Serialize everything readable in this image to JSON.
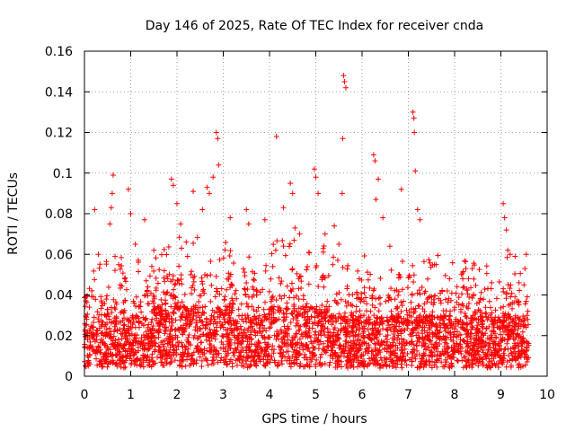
{
  "chart_data": {
    "type": "scatter",
    "title": "Day 146 of 2025, Rate Of TEC Index for receiver cnda",
    "xlabel": "GPS time / hours",
    "ylabel": "ROTI / TECUs",
    "xlim": [
      0,
      10
    ],
    "ylim": [
      0,
      0.16
    ],
    "xticks": [
      "0",
      "1",
      "2",
      "3",
      "4",
      "5",
      "6",
      "7",
      "8",
      "9",
      "10"
    ],
    "yticks": [
      "0",
      "0.02",
      "0.04",
      "0.06",
      "0.08",
      "0.1",
      "0.12",
      "0.14",
      "0.16"
    ],
    "grid": true,
    "marker": "+",
    "color": "#ff0000",
    "data_extent_hours": 9.6,
    "notable_points": [
      {
        "x": 0.05,
        "y": 0.028
      },
      {
        "x": 0.22,
        "y": 0.082
      },
      {
        "x": 0.3,
        "y": 0.06
      },
      {
        "x": 0.62,
        "y": 0.099
      },
      {
        "x": 0.6,
        "y": 0.09
      },
      {
        "x": 0.58,
        "y": 0.083
      },
      {
        "x": 0.55,
        "y": 0.075
      },
      {
        "x": 0.95,
        "y": 0.092
      },
      {
        "x": 1.0,
        "y": 0.08
      },
      {
        "x": 1.1,
        "y": 0.065
      },
      {
        "x": 1.3,
        "y": 0.077
      },
      {
        "x": 1.5,
        "y": 0.062
      },
      {
        "x": 1.88,
        "y": 0.097
      },
      {
        "x": 1.92,
        "y": 0.094
      },
      {
        "x": 2.0,
        "y": 0.085
      },
      {
        "x": 2.08,
        "y": 0.075
      },
      {
        "x": 2.2,
        "y": 0.066
      },
      {
        "x": 2.35,
        "y": 0.091
      },
      {
        "x": 2.55,
        "y": 0.082
      },
      {
        "x": 2.65,
        "y": 0.093
      },
      {
        "x": 2.7,
        "y": 0.09
      },
      {
        "x": 2.78,
        "y": 0.098
      },
      {
        "x": 2.85,
        "y": 0.12
      },
      {
        "x": 2.88,
        "y": 0.117
      },
      {
        "x": 2.9,
        "y": 0.104
      },
      {
        "x": 3.15,
        "y": 0.078
      },
      {
        "x": 3.5,
        "y": 0.082
      },
      {
        "x": 3.55,
        "y": 0.075
      },
      {
        "x": 3.9,
        "y": 0.077
      },
      {
        "x": 4.15,
        "y": 0.118
      },
      {
        "x": 4.3,
        "y": 0.083
      },
      {
        "x": 4.45,
        "y": 0.095
      },
      {
        "x": 4.5,
        "y": 0.09
      },
      {
        "x": 4.55,
        "y": 0.073
      },
      {
        "x": 4.65,
        "y": 0.07
      },
      {
        "x": 4.97,
        "y": 0.102
      },
      {
        "x": 5.0,
        "y": 0.098
      },
      {
        "x": 5.05,
        "y": 0.09
      },
      {
        "x": 5.2,
        "y": 0.07
      },
      {
        "x": 5.4,
        "y": 0.074
      },
      {
        "x": 5.5,
        "y": 0.065
      },
      {
        "x": 5.6,
        "y": 0.148
      },
      {
        "x": 5.62,
        "y": 0.145
      },
      {
        "x": 5.65,
        "y": 0.142
      },
      {
        "x": 5.58,
        "y": 0.117
      },
      {
        "x": 5.57,
        "y": 0.09
      },
      {
        "x": 6.25,
        "y": 0.109
      },
      {
        "x": 6.28,
        "y": 0.106
      },
      {
        "x": 6.35,
        "y": 0.097
      },
      {
        "x": 6.3,
        "y": 0.087
      },
      {
        "x": 6.45,
        "y": 0.078
      },
      {
        "x": 6.6,
        "y": 0.064
      },
      {
        "x": 6.85,
        "y": 0.092
      },
      {
        "x": 7.1,
        "y": 0.13
      },
      {
        "x": 7.12,
        "y": 0.127
      },
      {
        "x": 7.13,
        "y": 0.12
      },
      {
        "x": 7.15,
        "y": 0.101
      },
      {
        "x": 7.2,
        "y": 0.082
      },
      {
        "x": 7.25,
        "y": 0.077
      },
      {
        "x": 7.6,
        "y": 0.055
      },
      {
        "x": 8.3,
        "y": 0.048
      },
      {
        "x": 8.8,
        "y": 0.046
      },
      {
        "x": 9.05,
        "y": 0.085
      },
      {
        "x": 9.08,
        "y": 0.078
      },
      {
        "x": 9.12,
        "y": 0.072
      },
      {
        "x": 9.15,
        "y": 0.062
      },
      {
        "x": 9.2,
        "y": 0.06
      },
      {
        "x": 9.55,
        "y": 0.06
      },
      {
        "x": 9.52,
        "y": 0.053
      },
      {
        "x": 9.5,
        "y": 0.045
      }
    ]
  }
}
